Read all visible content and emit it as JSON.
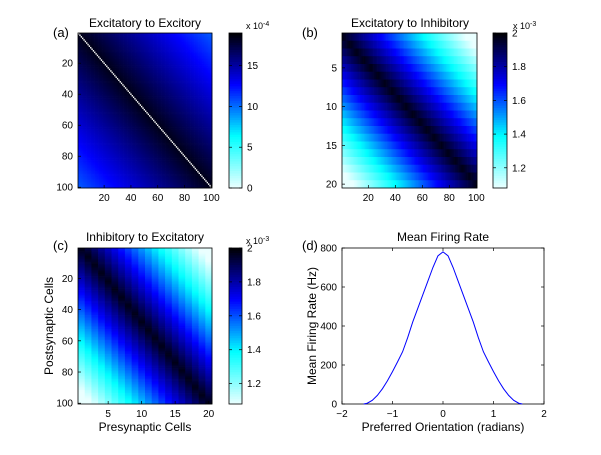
{
  "chart_data": [
    {
      "type": "heatmap",
      "panel": "(a)",
      "title": "Excitatory to Excitory",
      "xlabel": "",
      "ylabel": "",
      "x_ticks": [
        "20",
        "40",
        "60",
        "80",
        "100"
      ],
      "y_ticks": [
        "20",
        "40",
        "60",
        "80",
        "100"
      ],
      "xlim": [
        0.5,
        100.5
      ],
      "ylim": [
        0.5,
        100.5
      ],
      "rows": 100,
      "cols": 100,
      "pattern": "white diagonal (self connections = 0), weight decreasing with distance from diagonal",
      "colorbar": {
        "ticks": [
          "0",
          "5",
          "10",
          "15"
        ],
        "exponent": "x 10",
        "exponent_power": "-4",
        "range": [
          0,
          0.0019
        ]
      },
      "colormap": [
        "#eaffff",
        "#00ffff",
        "#0000ff",
        "#000000"
      ]
    },
    {
      "type": "heatmap",
      "panel": "(b)",
      "title": "Excitatory to Inhibitory",
      "xlabel": "",
      "ylabel": "",
      "x_ticks": [
        "20",
        "40",
        "60",
        "80",
        "100"
      ],
      "y_ticks": [
        "5",
        "10",
        "15",
        "20"
      ],
      "xlim": [
        0.5,
        100.5
      ],
      "ylim": [
        0.5,
        20.5
      ],
      "rows": 20,
      "cols": 100,
      "pattern": "dark diagonal band, lighter away from diagonal",
      "colorbar": {
        "ticks": [
          "1.2",
          "1.4",
          "1.6",
          "1.8",
          "2"
        ],
        "exponent": "x 10",
        "exponent_power": "-3",
        "range": [
          0.00108,
          0.002
        ]
      },
      "colormap": [
        "#eaffff",
        "#00ffff",
        "#0000ff",
        "#000000"
      ]
    },
    {
      "type": "heatmap",
      "panel": "(c)",
      "title": "Inhibitory to Excitatory",
      "xlabel": "Presynaptic Cells",
      "ylabel": "Postsynaptic Cells",
      "x_ticks": [
        "5",
        "10",
        "15",
        "20"
      ],
      "y_ticks": [
        "20",
        "40",
        "60",
        "80",
        "100"
      ],
      "xlim": [
        0.5,
        20.5
      ],
      "ylim": [
        0.5,
        100.5
      ],
      "rows": 100,
      "cols": 20,
      "pattern": "dark diagonal band, lighter away from diagonal",
      "colorbar": {
        "ticks": [
          "1.2",
          "1.4",
          "1.6",
          "1.8",
          "2"
        ],
        "exponent": "x 10",
        "exponent_power": "-3",
        "range": [
          0.00108,
          0.002
        ]
      },
      "colormap": [
        "#eaffff",
        "#00ffff",
        "#0000ff",
        "#000000"
      ]
    },
    {
      "type": "line",
      "panel": "(d)",
      "title": "Mean Firing Rate",
      "xlabel": "Preferred Orientation (radians)",
      "ylabel": "Mean Firing Rate (Hz)",
      "xlim": [
        -2,
        2
      ],
      "ylim": [
        0,
        800
      ],
      "x_ticks": [
        "−2",
        "−1",
        "0",
        "1",
        "2"
      ],
      "y_ticks": [
        "0",
        "200",
        "400",
        "600",
        "800"
      ],
      "series": [
        {
          "color": "#0000ff",
          "x": [
            -1.571,
            -1.5,
            -1.4,
            -1.3,
            -1.2,
            -1.1,
            -1.0,
            -0.9,
            -0.8,
            -0.7,
            -0.6,
            -0.5,
            -0.4,
            -0.3,
            -0.2,
            -0.1,
            0.0,
            0.1,
            0.2,
            0.3,
            0.4,
            0.5,
            0.6,
            0.7,
            0.8,
            0.9,
            1.0,
            1.1,
            1.2,
            1.3,
            1.4,
            1.5,
            1.571
          ],
          "y": [
            0,
            4,
            19,
            44,
            78,
            119,
            166,
            216,
            268,
            340,
            420,
            490,
            560,
            630,
            700,
            760,
            780,
            760,
            700,
            630,
            560,
            490,
            420,
            340,
            268,
            216,
            166,
            119,
            78,
            44,
            19,
            4,
            0
          ]
        }
      ]
    }
  ]
}
